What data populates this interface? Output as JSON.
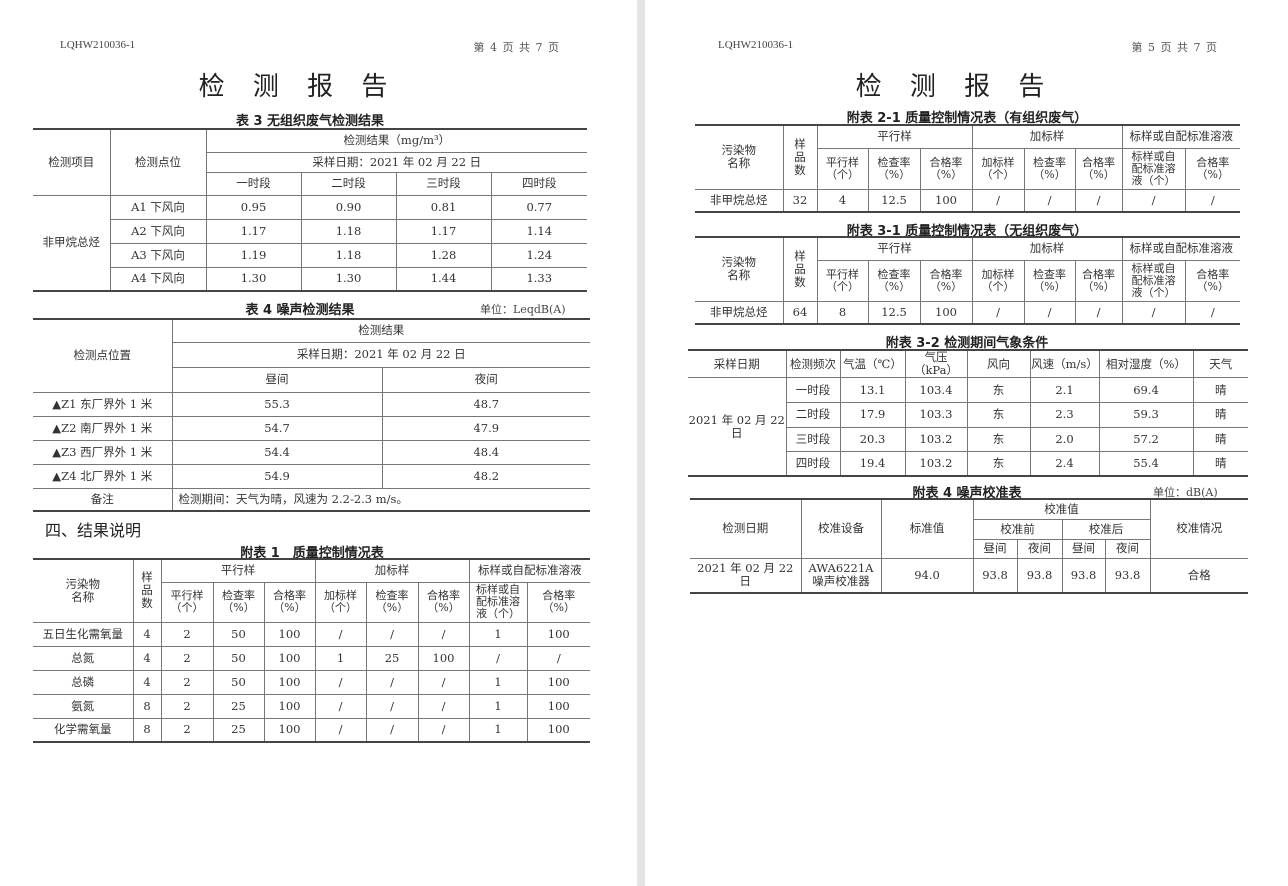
{
  "left": {
    "doc_id": "LQHW210036-1",
    "page_label": "第 4 页 共 7 页",
    "title": "检 测 报 告",
    "table3": {
      "caption": "表 3 无组织废气检测结果",
      "h_item": "检测项目",
      "h_point": "检测点位",
      "h_result": "检测结果（mg/m³）",
      "h_date": "采样日期：2021 年 02 月 22 日",
      "periods": [
        "一时段",
        "二时段",
        "三时段",
        "四时段"
      ],
      "item_name": "非甲烷总烃",
      "rows": [
        {
          "point": "A1 下风向",
          "values": [
            "0.95",
            "0.90",
            "0.81",
            "0.77"
          ]
        },
        {
          "point": "A2 下风向",
          "values": [
            "1.17",
            "1.18",
            "1.17",
            "1.14"
          ]
        },
        {
          "point": "A3 下风向",
          "values": [
            "1.19",
            "1.18",
            "1.28",
            "1.24"
          ]
        },
        {
          "point": "A4 下风向",
          "values": [
            "1.30",
            "1.30",
            "1.44",
            "1.33"
          ]
        }
      ]
    },
    "table4": {
      "caption": "表 4 噪声检测结果",
      "unit": "单位：LeqdB(A)",
      "h_point": "检测点位置",
      "h_result": "检测结果",
      "h_date": "采样日期：2021 年 02 月 22 日",
      "h_day": "昼间",
      "h_night": "夜间",
      "rows": [
        {
          "point": "▲Z1 东厂界外 1 米",
          "day": "55.3",
          "night": "48.7"
        },
        {
          "point": "▲Z2 南厂界外 1 米",
          "day": "54.7",
          "night": "47.9"
        },
        {
          "point": "▲Z3 西厂界外 1 米",
          "day": "54.4",
          "night": "48.4"
        },
        {
          "point": "▲Z4 北厂界外 1 米",
          "day": "54.9",
          "night": "48.2"
        }
      ],
      "note_label": "备注",
      "note": "检测期间：天气为晴，风速为 2.2-2.3 m/s。"
    },
    "section_title": "四、结果说明",
    "appendix1": {
      "caption": "附表 1　质量控制情况表",
      "headers": {
        "name": "污染物\n名称",
        "count": "样\n品\n数",
        "parallel": "平行样",
        "spiked": "加标样",
        "standard": "标样或自配标准溶液",
        "sub": [
          "平行样\n（个）",
          "检查率\n（%）",
          "合格率\n（%）",
          "加标样\n（个）",
          "检查率\n（%）",
          "合格率\n（%）",
          "标样或自\n配标准溶\n液（个）",
          "合格率\n（%）"
        ]
      },
      "rows": [
        [
          "五日生化需氧量",
          "4",
          "2",
          "50",
          "100",
          "/",
          "/",
          "/",
          "1",
          "100"
        ],
        [
          "总氮",
          "4",
          "2",
          "50",
          "100",
          "1",
          "25",
          "100",
          "/",
          "/"
        ],
        [
          "总磷",
          "4",
          "2",
          "50",
          "100",
          "/",
          "/",
          "/",
          "1",
          "100"
        ],
        [
          "氨氮",
          "8",
          "2",
          "25",
          "100",
          "/",
          "/",
          "/",
          "1",
          "100"
        ],
        [
          "化学需氧量",
          "8",
          "2",
          "25",
          "100",
          "/",
          "/",
          "/",
          "1",
          "100"
        ]
      ]
    }
  },
  "right": {
    "doc_id": "LQHW210036-1",
    "page_label": "第 5 页 共 7 页",
    "title": "检 测 报 告",
    "appendix2_1": {
      "caption": "附表 2-1 质量控制情况表（有组织废气）",
      "headers": {
        "name": "污染物\n名称",
        "count": "样\n品\n数",
        "parallel": "平行样",
        "spiked": "加标样",
        "standard": "标样或自配标准溶液",
        "sub": [
          "平行样\n（个）",
          "检查率\n（%）",
          "合格率\n（%）",
          "加标样\n（个）",
          "检查率\n（%）",
          "合格率\n（%）",
          "标样或自\n配标准溶\n液（个）",
          "合格率\n（%）"
        ]
      },
      "rows": [
        [
          "非甲烷总烃",
          "32",
          "4",
          "12.5",
          "100",
          "/",
          "/",
          "/",
          "/",
          "/"
        ]
      ]
    },
    "appendix3_1": {
      "caption": "附表 3-1 质量控制情况表（无组织废气）",
      "headers": {
        "name": "污染物\n名称",
        "count": "样\n品\n数",
        "parallel": "平行样",
        "spiked": "加标样",
        "standard": "标样或自配标准溶液",
        "sub": [
          "平行样\n（个）",
          "检查率\n（%）",
          "合格率\n（%）",
          "加标样\n（个）",
          "检查率\n（%）",
          "合格率\n（%）",
          "标样或自\n配标准溶\n液（个）",
          "合格率\n（%）"
        ]
      },
      "rows": [
        [
          "非甲烷总烃",
          "64",
          "8",
          "12.5",
          "100",
          "/",
          "/",
          "/",
          "/",
          "/"
        ]
      ]
    },
    "appendix3_2": {
      "caption": "附表 3-2  检测期间气象条件",
      "headers": [
        "采样日期",
        "检测频次",
        "气温（℃）",
        "气压（kPa）",
        "风向",
        "风速（m/s）",
        "相对湿度（%）",
        "天气"
      ],
      "date": "2021 年 02 月 22 日",
      "rows": [
        [
          "一时段",
          "13.1",
          "103.4",
          "东",
          "2.1",
          "69.4",
          "晴"
        ],
        [
          "二时段",
          "17.9",
          "103.3",
          "东",
          "2.3",
          "59.3",
          "晴"
        ],
        [
          "三时段",
          "20.3",
          "103.2",
          "东",
          "2.0",
          "57.2",
          "晴"
        ],
        [
          "四时段",
          "19.4",
          "103.2",
          "东",
          "2.4",
          "55.4",
          "晴"
        ]
      ]
    },
    "appendix4": {
      "caption": "附表 4  噪声校准表",
      "unit": "单位：dB(A)",
      "h_date": "检测日期",
      "h_device": "校准设备",
      "h_standard": "标准值",
      "h_cal": "校准值",
      "h_before": "校准前",
      "h_after": "校准后",
      "h_day": "昼间",
      "h_night": "夜间",
      "h_status": "校准情况",
      "row": {
        "date": "2021 年 02 月 22 日",
        "device": "AWA6221A\n噪声校准器",
        "standard": "94.0",
        "values": [
          "93.8",
          "93.8",
          "93.8",
          "93.8"
        ],
        "status": "合格"
      }
    }
  }
}
